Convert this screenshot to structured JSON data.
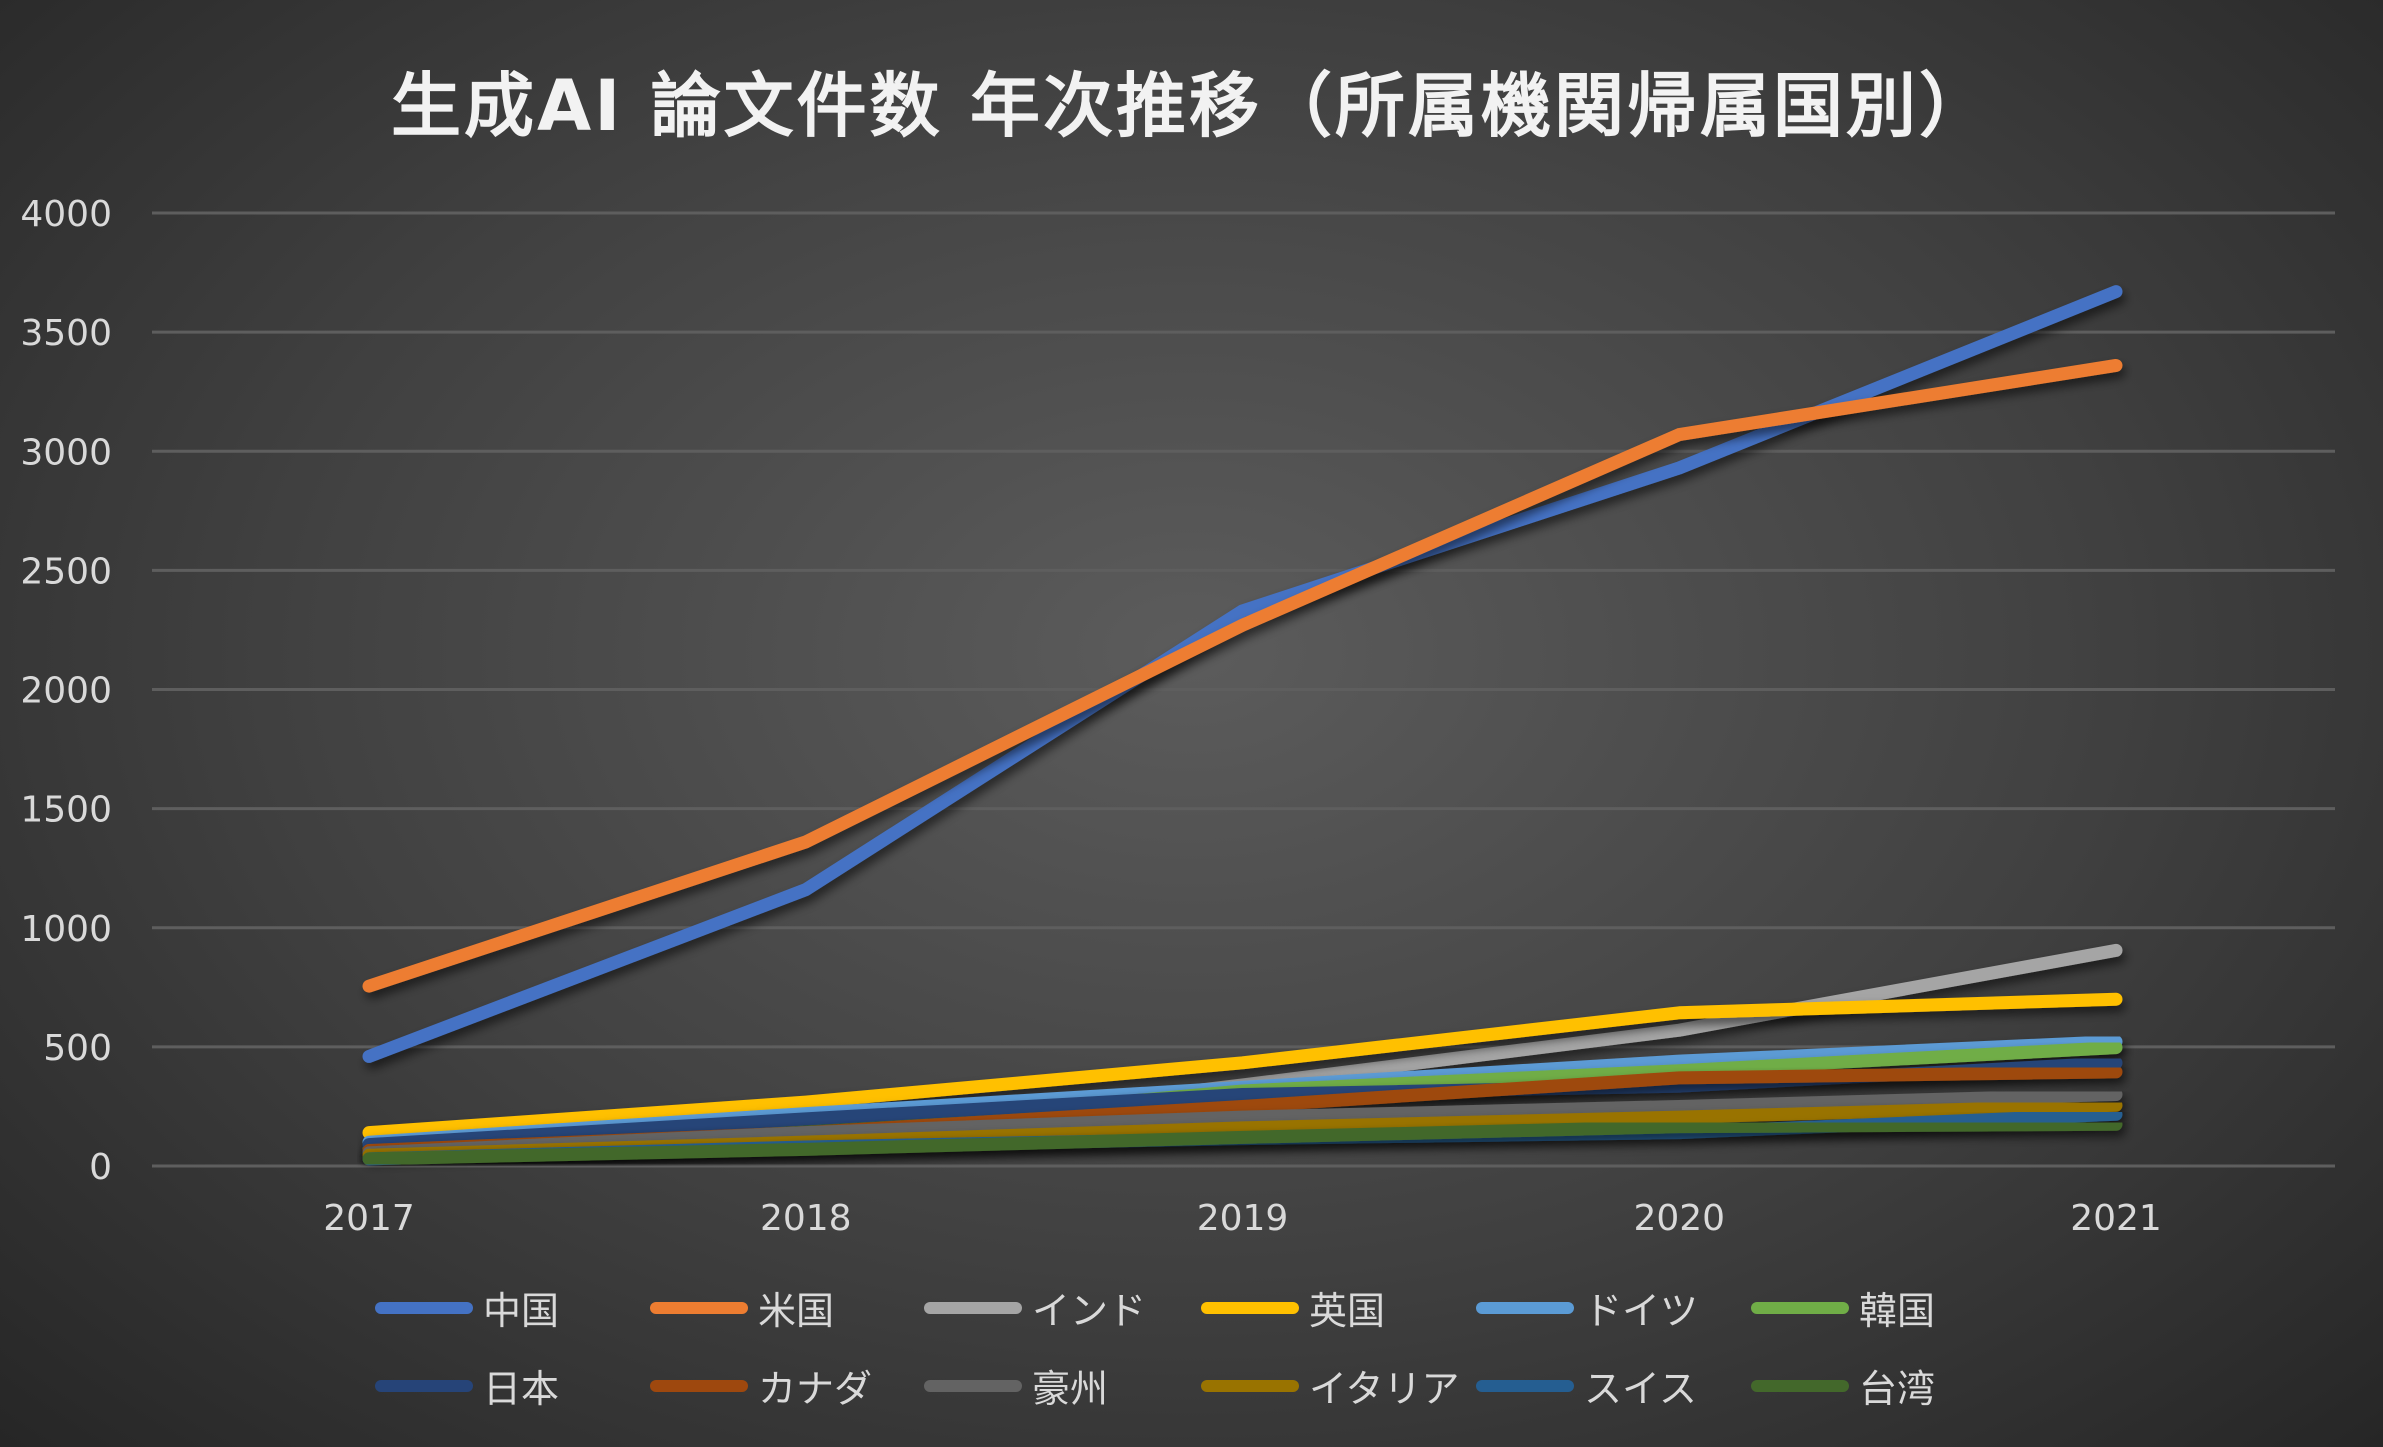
{
  "chart_data": {
    "type": "line",
    "title": "生成AI 論文件数 年次推移（所属機関帰属国別）",
    "xlabel": "",
    "ylabel": "",
    "categories": [
      "2017",
      "2018",
      "2019",
      "2020",
      "2021"
    ],
    "ylim": [
      0,
      4000
    ],
    "yticks": [
      "0",
      "500",
      "1000",
      "1500",
      "2000",
      "2500",
      "3000",
      "3500",
      "4000"
    ],
    "grid": true,
    "legend_placement": "bottom",
    "series": [
      {
        "name": "中国",
        "color": "#4472C4",
        "values": [
          460,
          1160,
          2330,
          2930,
          3670
        ]
      },
      {
        "name": "米国",
        "color": "#ED7D31",
        "values": [
          755,
          1360,
          2270,
          3070,
          3360
        ]
      },
      {
        "name": "インド",
        "color": "#A5A5A5",
        "values": [
          60,
          120,
          340,
          570,
          905
        ]
      },
      {
        "name": "英国",
        "color": "#FFC000",
        "values": [
          140,
          268,
          433,
          643,
          700
        ]
      },
      {
        "name": "ドイツ",
        "color": "#5B9BD5",
        "values": [
          100,
          220,
          330,
          440,
          522
        ]
      },
      {
        "name": "韓国",
        "color": "#70AD47",
        "values": [
          70,
          150,
          315,
          400,
          497
        ]
      },
      {
        "name": "日本",
        "color": "#264478",
        "values": [
          90,
          198,
          300,
          335,
          433
        ]
      },
      {
        "name": "カナダ",
        "color": "#9E480E",
        "values": [
          65,
          140,
          250,
          370,
          395
        ]
      },
      {
        "name": "豪州",
        "color": "#636363",
        "values": [
          55,
          140,
          205,
          250,
          300
        ]
      },
      {
        "name": "イタリア",
        "color": "#997300",
        "values": [
          45,
          100,
          160,
          205,
          255
        ]
      },
      {
        "name": "スイス",
        "color": "#255E91",
        "values": [
          30,
          80,
          115,
          140,
          217
        ]
      },
      {
        "name": "台湾",
        "color": "#43682B",
        "values": [
          30,
          70,
          120,
          165,
          175
        ]
      }
    ]
  }
}
